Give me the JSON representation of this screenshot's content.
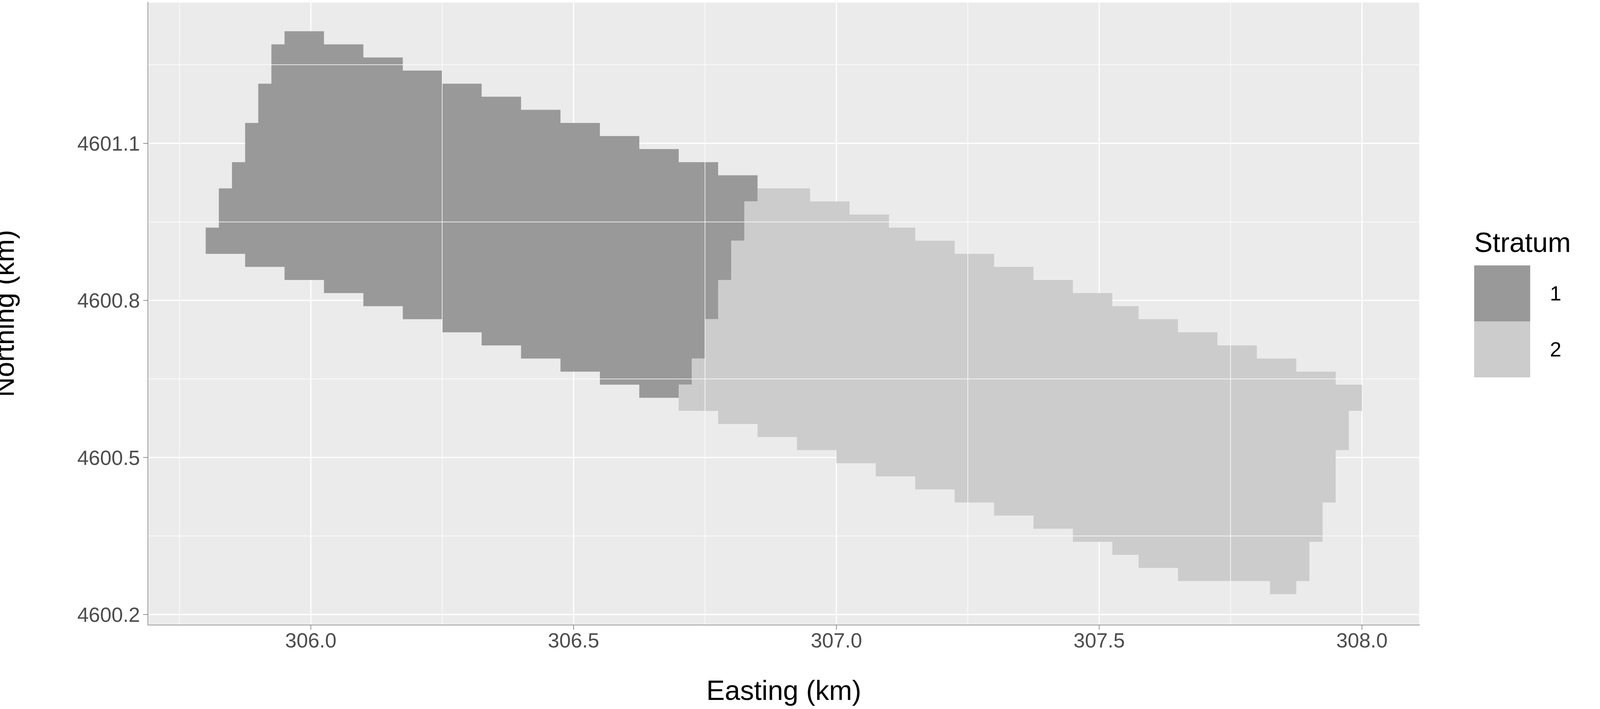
{
  "chart_data": {
    "type": "raster",
    "x_label": "Easting (km)",
    "y_label": "Northing (km)",
    "legend_title": "Stratum",
    "xlim": [
      305.69,
      308.11
    ],
    "ylim": [
      4600.18,
      4601.37
    ],
    "xticks": [
      {
        "value": 306,
        "label": "306.0"
      },
      306.5,
      {
        "value": 307,
        "label": "307.0"
      },
      307.5,
      {
        "value": 308,
        "label": "308.0"
      }
    ],
    "yticks": [
      4600.2,
      4600.5,
      4600.8,
      4601.1
    ],
    "grid": true,
    "series": [
      {
        "name": "1",
        "color": "#999999",
        "x": [
          305.8,
          305.825,
          305.85,
          305.875,
          305.9,
          305.925,
          305.95,
          306.025,
          306.1,
          306.175,
          306.25,
          306.325,
          306.4,
          306.475,
          306.55,
          306.625,
          306.7,
          306.725,
          306.75,
          306.775,
          306.8,
          306.825,
          306.85
        ],
        "ymin": [
          4600.889,
          4600.889,
          4600.889,
          4600.864,
          4600.864,
          4600.864,
          4600.839,
          4600.814,
          4600.789,
          4600.764,
          4600.739,
          4600.714,
          4600.689,
          4600.664,
          4600.639,
          4600.614,
          4600.639,
          4600.689,
          4600.764,
          4600.839,
          4600.914,
          4600.989,
          4600.989
        ],
        "ymax": [
          4600.939,
          4601.014,
          4601.064,
          4601.139,
          4601.214,
          4601.289,
          4601.314,
          4601.289,
          4601.264,
          4601.239,
          4601.214,
          4601.189,
          4601.164,
          4601.139,
          4601.114,
          4601.089,
          4601.064,
          4601.064,
          4601.064,
          4601.039,
          4601.039,
          4601.039,
          4601.039
        ]
      },
      {
        "name": "2",
        "color": "#cccccc",
        "x": [
          306.7,
          306.725,
          306.75,
          306.775,
          306.8,
          306.825,
          306.85,
          306.925,
          306.95,
          307.0,
          307.025,
          307.075,
          307.1,
          307.15,
          307.225,
          307.3,
          307.375,
          307.45,
          307.525,
          307.575,
          307.65,
          307.725,
          307.8,
          307.825,
          307.875,
          307.9,
          307.925,
          307.95,
          307.975,
          308.0
        ],
        "ymin": [
          4600.589,
          4600.589,
          4600.589,
          4600.564,
          4600.564,
          4600.564,
          4600.539,
          4600.514,
          4600.514,
          4600.489,
          4600.489,
          4600.464,
          4600.464,
          4600.439,
          4600.414,
          4600.389,
          4600.364,
          4600.339,
          4600.314,
          4600.289,
          4600.264,
          4600.264,
          4600.264,
          4600.239,
          4600.264,
          4600.339,
          4600.414,
          4600.514,
          4600.589,
          4600.589
        ],
        "ymax": [
          4600.639,
          4600.689,
          4600.764,
          4600.839,
          4600.914,
          4600.989,
          4601.014,
          4601.014,
          4600.989,
          4600.989,
          4600.964,
          4600.964,
          4600.939,
          4600.914,
          4600.889,
          4600.864,
          4600.839,
          4600.814,
          4600.789,
          4600.764,
          4600.739,
          4600.714,
          4600.689,
          4600.689,
          4600.664,
          4600.664,
          4600.664,
          4600.639,
          4600.639,
          4600.639
        ]
      }
    ]
  }
}
